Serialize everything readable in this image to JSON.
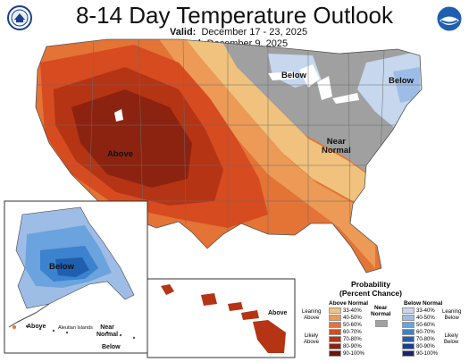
{
  "header": {
    "title": "8-14 Day Temperature Outlook",
    "valid_label": "Valid:",
    "valid_value": "December 17 - 23, 2025",
    "issued_label": "Issued:",
    "issued_value": "December 9, 2025"
  },
  "logos": {
    "left": "doc-seal",
    "right": "noaa-logo"
  },
  "map_labels": {
    "above_west": "Above",
    "below_great_lakes": "Below",
    "below_northeast": "Below",
    "near_normal_line1": "Near",
    "near_normal_line2": "Normal",
    "alaska_below": "Below",
    "alaska_above": "Above",
    "aleutian_islands": "Aleutian Islands",
    "alaska_near_line1": "Near",
    "alaska_near_line2": "Normal",
    "alaska_below_small": "Below",
    "hawaii_above": "Above"
  },
  "legend": {
    "title_line1": "Probability",
    "title_line2": "(Percent Chance)",
    "above_header": "Above Normal",
    "below_header": "Below Normal",
    "near_header_line1": "Near",
    "near_header_line2": "Normal",
    "leaning_above_1": "Leaning",
    "leaning_above_2": "Above",
    "likely_above_1": "Likely",
    "likely_above_2": "Above",
    "leaning_below_1": "Leaning",
    "leaning_below_2": "Below",
    "likely_below_1": "Likely",
    "likely_below_2": "Below",
    "ranges": [
      "33-40%",
      "40-50%",
      "50-60%",
      "60-70%",
      "70-80%",
      "80-90%",
      "90-100%"
    ],
    "above_colors": [
      "#f1c27d",
      "#ec9a55",
      "#e47336",
      "#d64b1f",
      "#b43414",
      "#8c2310",
      "#6b150b"
    ],
    "below_colors": [
      "#c6d7ee",
      "#9dbde6",
      "#6aa3dd",
      "#3b82cf",
      "#1f5fb0",
      "#1b3f8c",
      "#14256a"
    ],
    "near_color": "#a0a0a0"
  }
}
